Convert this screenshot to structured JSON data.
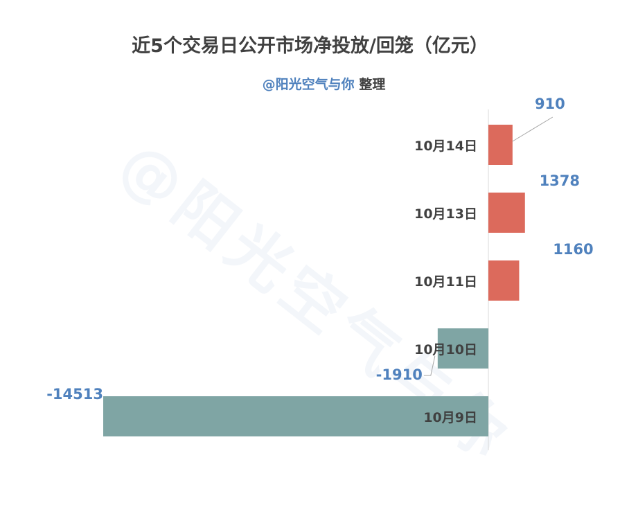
{
  "title": "近5个交易日公开市场净投放/回笼（亿元）",
  "subtitle": {
    "handle": "@阳光空气与你",
    "suffix": "整理"
  },
  "watermark": "@阳光空气与你",
  "colors": {
    "positive": "#dc6a5c",
    "negative": "#7fa5a4",
    "value_label": "#4f81bd",
    "category_label": "#404040",
    "axis": "#d9d9d9"
  },
  "chart_data": {
    "type": "bar",
    "orientation": "horizontal",
    "categories": [
      "10月14日",
      "10月13日",
      "10月11日",
      "10月10日",
      "10月9日"
    ],
    "values": [
      910,
      1378,
      1160,
      -1910,
      -14513
    ],
    "value_labels": [
      "910",
      "1378",
      "1160",
      "-1910",
      "-14513"
    ],
    "xlim": [
      -14513,
      1378
    ],
    "grid": false,
    "legend": "none"
  }
}
